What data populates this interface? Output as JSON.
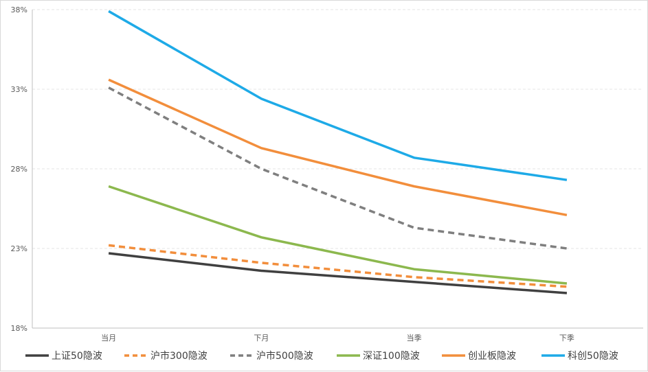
{
  "chart_data": {
    "type": "line",
    "categories": [
      "当月",
      "下月",
      "当季",
      "下季"
    ],
    "y_ticks": [
      "18%",
      "23%",
      "28%",
      "33%",
      "38%"
    ],
    "ylim": [
      18,
      38
    ],
    "y_unit": "%",
    "grid": true,
    "legend_position": "bottom",
    "series": [
      {
        "name": "上证50隐波",
        "values": [
          22.7,
          21.6,
          20.9,
          20.2
        ],
        "color": "#404040",
        "dash": "solid"
      },
      {
        "name": "沪市300隐波",
        "values": [
          23.2,
          22.1,
          21.2,
          20.6
        ],
        "color": "#f28e3c",
        "dash": "dashed"
      },
      {
        "name": "沪市500隐波",
        "values": [
          33.1,
          28.0,
          24.3,
          23.0
        ],
        "color": "#7f7f7f",
        "dash": "dashed"
      },
      {
        "name": "深证100隐波",
        "values": [
          26.9,
          23.7,
          21.7,
          20.8
        ],
        "color": "#8cb84e",
        "dash": "solid"
      },
      {
        "name": "创业板隐波",
        "values": [
          33.6,
          29.3,
          26.9,
          25.1
        ],
        "color": "#f28e3c",
        "dash": "solid"
      },
      {
        "name": "科创50隐波",
        "values": [
          37.9,
          32.4,
          28.7,
          27.3
        ],
        "color": "#1eaae7",
        "dash": "solid"
      }
    ]
  }
}
